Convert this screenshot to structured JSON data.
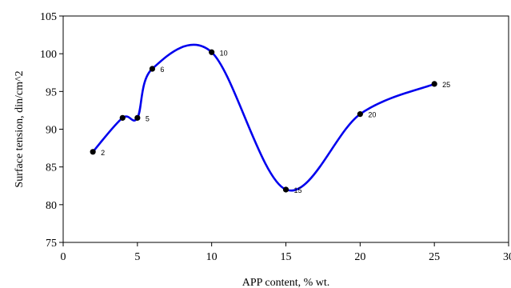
{
  "chart_data": {
    "type": "scatter",
    "title": "",
    "xlabel": "APP content, % wt.",
    "ylabel": "Surface tension, din/cm^2",
    "xlim": [
      0,
      30
    ],
    "ylim": [
      75,
      105
    ],
    "x_ticks": [
      "0",
      "5",
      "10",
      "15",
      "20",
      "25",
      "30"
    ],
    "y_ticks": [
      "75",
      "80",
      "85",
      "90",
      "95",
      "100",
      "105"
    ],
    "grid": false,
    "legend": "none",
    "line_style": "smooth",
    "line_color": "#0000ee",
    "marker_color": "#000000",
    "series": [
      {
        "x": [
          2,
          4,
          5,
          6,
          10,
          15,
          20,
          25
        ],
        "y": [
          87,
          91.5,
          91.5,
          98,
          100.2,
          82,
          92,
          96
        ],
        "labels": [
          "2",
          "",
          "5",
          "6",
          "10",
          "15",
          "20",
          "25"
        ]
      }
    ]
  }
}
